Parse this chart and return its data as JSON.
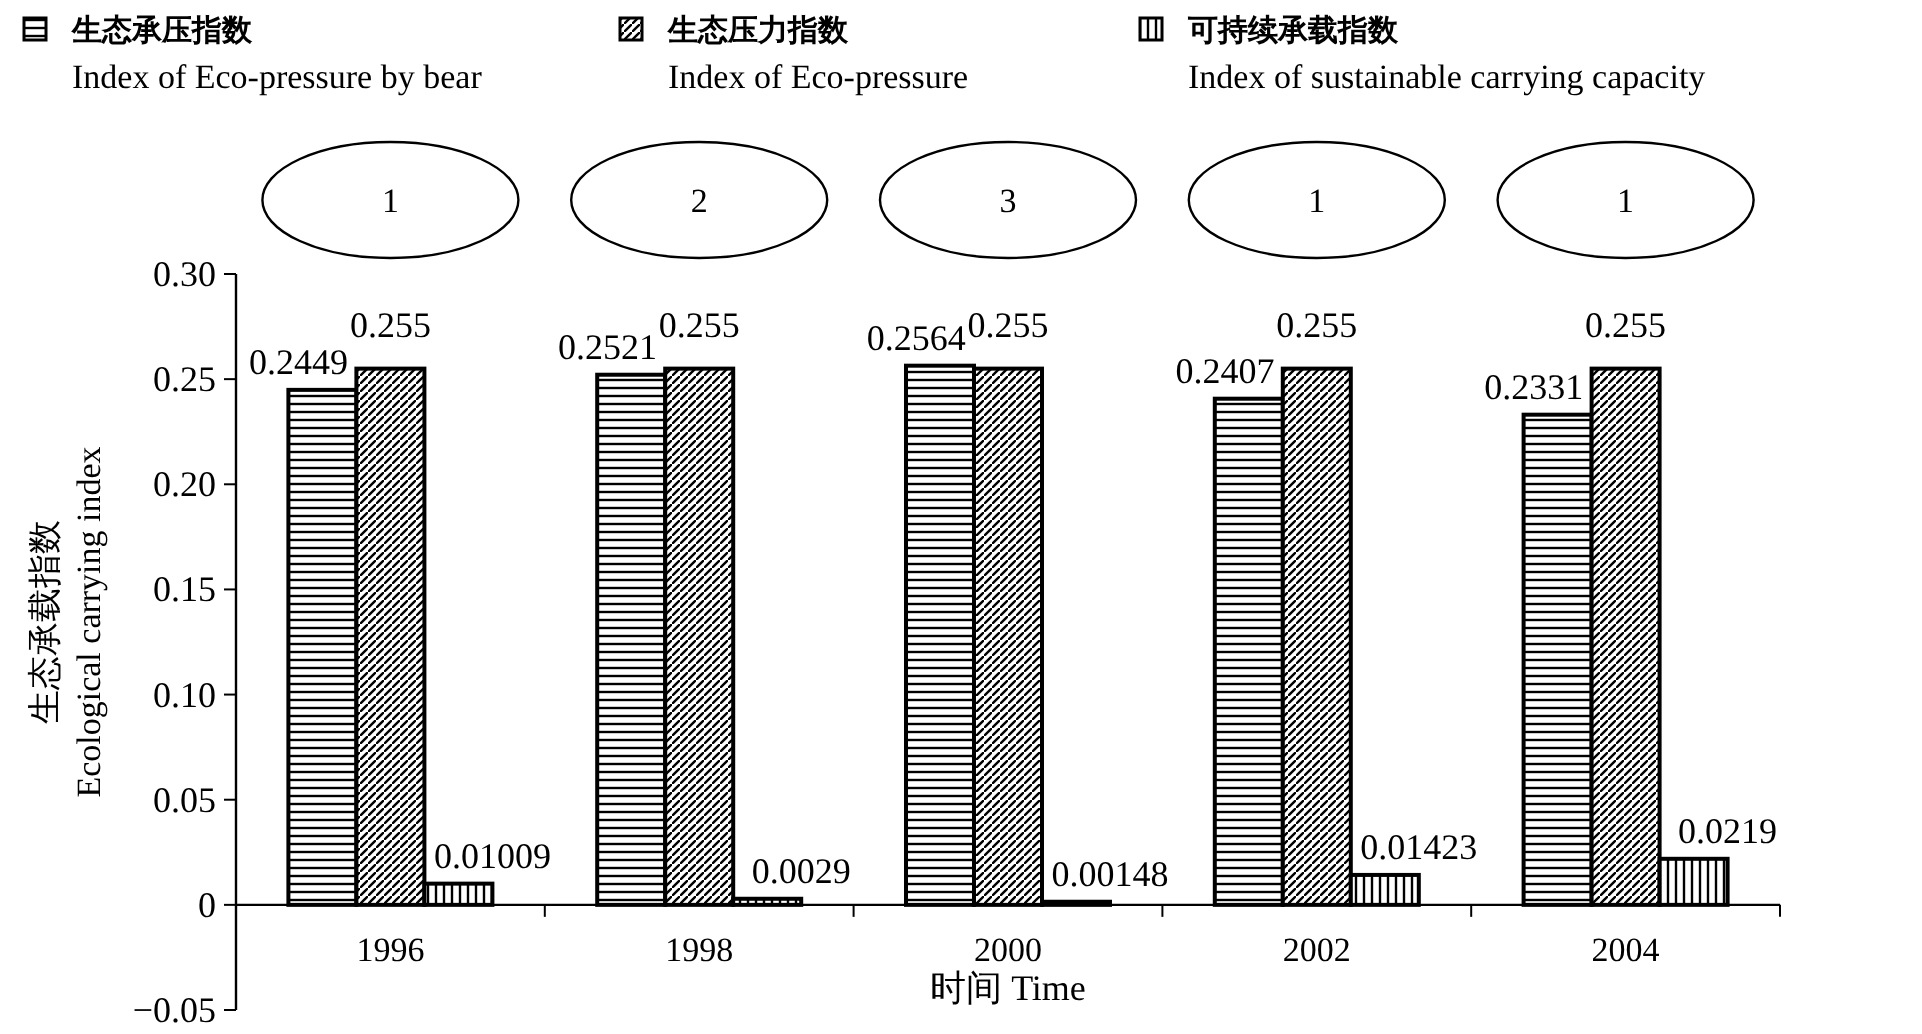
{
  "chart_data": {
    "type": "bar",
    "ylabel": "生态承载指数\nEcological carrying index",
    "xlabel": "时间 Time",
    "categories": [
      "1996",
      "1998",
      "2000",
      "2002",
      "2004"
    ],
    "series": [
      {
        "name": "生态承压指数\nIndex of Eco-pressure by bear",
        "color": "#000000",
        "values": [
          0.2449,
          0.2521,
          0.2564,
          0.2407,
          0.2331
        ]
      },
      {
        "name": "生态压力指数\nIndex of Eco-pressure",
        "color": "#000000",
        "values": [
          0.255,
          0.255,
          0.255,
          0.255,
          0.255
        ]
      },
      {
        "name": "可持续承载指数\nIndex of sustainable carrying capacity",
        "color": "#000000",
        "values": [
          0.01009,
          0.0029,
          0.00148,
          0.01423,
          0.0219
        ]
      }
    ],
    "ylim": [
      -0.05,
      0.3
    ],
    "yticks": [
      {
        "value": 0.3,
        "label": "0.30"
      },
      0.25,
      {
        "value": 0.2,
        "label": "0.20"
      },
      0.15,
      {
        "value": 0.1,
        "label": "0.10"
      },
      0.05,
      0,
      {
        "value": -0.05,
        "label": "−0.05"
      }
    ],
    "data_labels": true,
    "legend": "top",
    "annotations": [
      "1",
      "2",
      "3",
      "1",
      "1"
    ]
  }
}
